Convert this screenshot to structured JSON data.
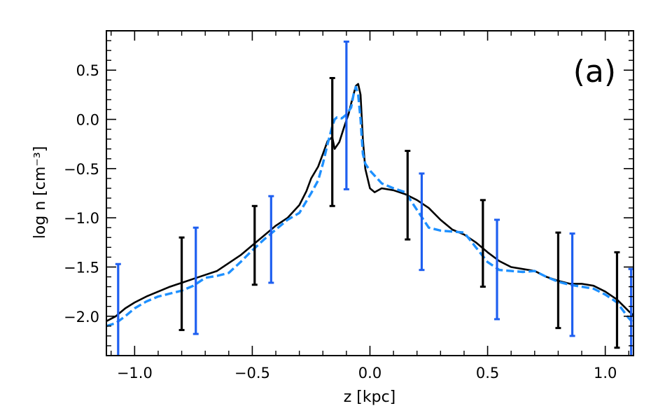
{
  "chart_data": {
    "type": "line",
    "title": "",
    "annotation": "(a)",
    "xlabel": "z [kpc]",
    "ylabel": "log n [cm⁻³]",
    "xlim": [
      -1.12,
      1.12
    ],
    "ylim": [
      -2.4,
      0.9
    ],
    "xticks": [
      -1.0,
      -0.5,
      0.0,
      0.5,
      1.0
    ],
    "xtick_labels": [
      "−1.0",
      "−0.5",
      "0.0",
      "0.5",
      "1.0"
    ],
    "yticks": [
      -2.0,
      -1.5,
      -1.0,
      -0.5,
      0.0,
      0.5
    ],
    "ytick_labels": [
      "−2.0",
      "−1.5",
      "−1.0",
      "−0.5",
      "0.0",
      "0.5"
    ],
    "grid": false,
    "series": [
      {
        "color": "#000000",
        "style": "solid",
        "x": [
          -1.12,
          -1.08,
          -1.04,
          -1.0,
          -0.95,
          -0.9,
          -0.85,
          -0.8,
          -0.75,
          -0.7,
          -0.65,
          -0.6,
          -0.55,
          -0.5,
          -0.45,
          -0.4,
          -0.35,
          -0.3,
          -0.27,
          -0.25,
          -0.22,
          -0.2,
          -0.18,
          -0.16,
          -0.15,
          -0.13,
          -0.11,
          -0.09,
          -0.08,
          -0.07,
          -0.06,
          -0.05,
          -0.04,
          -0.03,
          -0.02,
          0.0,
          0.02,
          0.05,
          0.1,
          0.15,
          0.2,
          0.25,
          0.3,
          0.35,
          0.4,
          0.45,
          0.5,
          0.55,
          0.6,
          0.65,
          0.7,
          0.75,
          0.8,
          0.85,
          0.9,
          0.95,
          1.0,
          1.05,
          1.1,
          1.12
        ],
        "y": [
          -2.05,
          -2.0,
          -1.92,
          -1.86,
          -1.8,
          -1.75,
          -1.7,
          -1.66,
          -1.62,
          -1.58,
          -1.54,
          -1.46,
          -1.38,
          -1.28,
          -1.18,
          -1.08,
          -1.0,
          -0.87,
          -0.73,
          -0.6,
          -0.48,
          -0.35,
          -0.22,
          -0.18,
          -0.3,
          -0.23,
          -0.08,
          0.06,
          0.16,
          0.25,
          0.34,
          0.36,
          0.25,
          -0.2,
          -0.5,
          -0.7,
          -0.74,
          -0.7,
          -0.72,
          -0.76,
          -0.82,
          -0.9,
          -1.02,
          -1.12,
          -1.17,
          -1.25,
          -1.35,
          -1.44,
          -1.5,
          -1.52,
          -1.54,
          -1.6,
          -1.64,
          -1.67,
          -1.67,
          -1.69,
          -1.75,
          -1.83,
          -1.95,
          -1.99
        ]
      },
      {
        "color": "#1e90ff",
        "style": "dashed",
        "x": [
          -1.12,
          -1.08,
          -1.04,
          -1.0,
          -0.95,
          -0.9,
          -0.85,
          -0.8,
          -0.75,
          -0.7,
          -0.65,
          -0.6,
          -0.55,
          -0.5,
          -0.45,
          -0.4,
          -0.35,
          -0.3,
          -0.25,
          -0.22,
          -0.2,
          -0.18,
          -0.16,
          -0.15,
          -0.14,
          -0.12,
          -0.1,
          -0.08,
          -0.07,
          -0.06,
          -0.05,
          -0.04,
          -0.03,
          -0.02,
          0.0,
          0.05,
          0.1,
          0.15,
          0.2,
          0.25,
          0.3,
          0.35,
          0.4,
          0.45,
          0.5,
          0.55,
          0.6,
          0.65,
          0.7,
          0.75,
          0.8,
          0.85,
          0.9,
          0.95,
          1.0,
          1.05,
          1.1,
          1.12
        ],
        "y": [
          -2.1,
          -2.07,
          -2.0,
          -1.92,
          -1.85,
          -1.8,
          -1.77,
          -1.74,
          -1.69,
          -1.61,
          -1.59,
          -1.56,
          -1.45,
          -1.33,
          -1.22,
          -1.12,
          -1.02,
          -0.95,
          -0.75,
          -0.62,
          -0.45,
          -0.25,
          -0.07,
          0.0,
          0.02,
          0.01,
          0.05,
          0.12,
          0.25,
          0.33,
          0.25,
          0.0,
          -0.35,
          -0.45,
          -0.52,
          -0.65,
          -0.7,
          -0.74,
          -0.92,
          -1.1,
          -1.13,
          -1.14,
          -1.15,
          -1.3,
          -1.45,
          -1.53,
          -1.54,
          -1.55,
          -1.54,
          -1.6,
          -1.65,
          -1.68,
          -1.7,
          -1.72,
          -1.78,
          -1.86,
          -2.02,
          -2.07
        ]
      }
    ],
    "errorbars": [
      {
        "color": "#000000",
        "x": -0.8,
        "low": -2.14,
        "high": -1.2
      },
      {
        "color": "#000000",
        "x": -0.49,
        "low": -1.68,
        "high": -0.88
      },
      {
        "color": "#000000",
        "x": -0.16,
        "low": -0.88,
        "high": 0.42
      },
      {
        "color": "#000000",
        "x": 0.16,
        "low": -1.22,
        "high": -0.32
      },
      {
        "color": "#000000",
        "x": 0.48,
        "low": -1.7,
        "high": -0.82
      },
      {
        "color": "#000000",
        "x": 0.8,
        "low": -2.12,
        "high": -1.15
      },
      {
        "color": "#000000",
        "x": 1.05,
        "low": -2.32,
        "high": -1.35
      },
      {
        "color": "#1e5ff0",
        "x": -1.07,
        "low": -2.45,
        "high": -1.47
      },
      {
        "color": "#1e5ff0",
        "x": -0.74,
        "low": -2.18,
        "high": -1.1
      },
      {
        "color": "#1e5ff0",
        "x": -0.42,
        "low": -1.66,
        "high": -0.78
      },
      {
        "color": "#1e5ff0",
        "x": -0.1,
        "low": -0.71,
        "high": 0.79
      },
      {
        "color": "#1e5ff0",
        "x": 0.22,
        "low": -1.53,
        "high": -0.55
      },
      {
        "color": "#1e5ff0",
        "x": 0.54,
        "low": -2.03,
        "high": -1.02
      },
      {
        "color": "#1e5ff0",
        "x": 0.86,
        "low": -2.2,
        "high": -1.16
      },
      {
        "color": "#1e5ff0",
        "x": 1.11,
        "low": -2.45,
        "high": -1.52
      }
    ]
  }
}
